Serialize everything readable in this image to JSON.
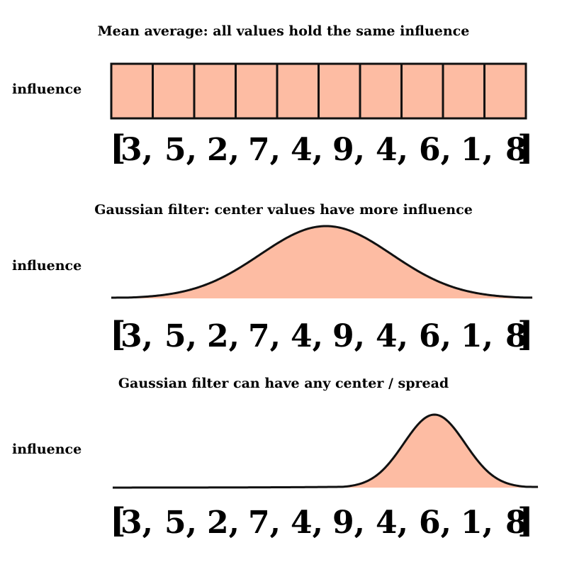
{
  "panels": [
    {
      "title": "Mean average: all values hold the same influence",
      "ylabel": "influence",
      "kind": "uniform",
      "values": [
        3,
        5,
        2,
        7,
        4,
        9,
        4,
        6,
        1,
        8
      ],
      "weights": [
        1,
        1,
        1,
        1,
        1,
        1,
        1,
        1,
        1,
        1
      ]
    },
    {
      "title": "Gaussian filter: center values have more influence",
      "ylabel": "influence",
      "kind": "gaussian",
      "values": [
        3,
        5,
        2,
        7,
        4,
        9,
        4,
        6,
        1,
        8
      ],
      "center_index": 4.95,
      "spread_index": 1.55
    },
    {
      "title": "Gaussian filter can have any center / spread",
      "ylabel": "influence",
      "kind": "gaussian",
      "values": [
        3,
        5,
        2,
        7,
        4,
        9,
        4,
        6,
        1,
        8
      ],
      "center_index": 7.5,
      "spread_index": 0.72
    }
  ],
  "colors": {
    "fill": "#fdbca3",
    "stroke": "#111111"
  }
}
